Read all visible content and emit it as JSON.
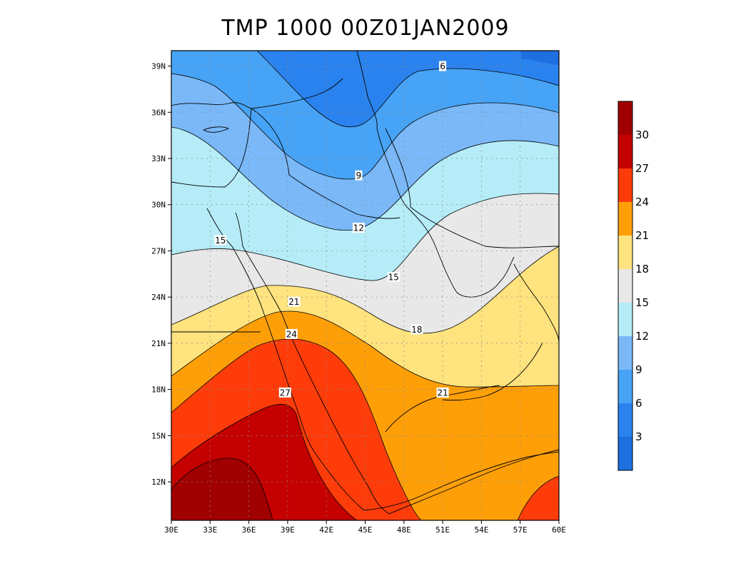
{
  "title": "TMP 1000 00Z01JAN2009",
  "chart_data": {
    "type": "contour_map",
    "variable": "TMP",
    "level": "1000",
    "time": "00Z01JAN2009",
    "lon_range": [
      30,
      60
    ],
    "lat_range": [
      9.5,
      40
    ],
    "x_ticks": [
      "30E",
      "33E",
      "36E",
      "39E",
      "42E",
      "45E",
      "48E",
      "51E",
      "54E",
      "57E",
      "60E"
    ],
    "y_ticks": [
      "12N",
      "15N",
      "18N",
      "21N",
      "24N",
      "27N",
      "30N",
      "33N",
      "36N",
      "39N"
    ],
    "colorbar": {
      "labels": [
        "3",
        "6",
        "9",
        "12",
        "15",
        "18",
        "21",
        "24",
        "27",
        "30"
      ],
      "colors": [
        "#1e6fe0",
        "#2a82ee",
        "#47a3f5",
        "#7ab8f8",
        "#b5ecf8",
        "#e8e8e8",
        "#fee37e",
        "#fe9f08",
        "#fe3c0a",
        "#c40000",
        "#a00000"
      ]
    },
    "contour_labels": [
      {
        "value": "6",
        "lon": 51,
        "lat": 39
      },
      {
        "value": "9",
        "lon": 44.5,
        "lat": 31.9
      },
      {
        "value": "12",
        "lon": 44.5,
        "lat": 28.5
      },
      {
        "value": "15",
        "lon": 33.8,
        "lat": 27.7
      },
      {
        "value": "15",
        "lon": 47.2,
        "lat": 25.3
      },
      {
        "value": "18",
        "lon": 49.0,
        "lat": 21.9
      },
      {
        "value": "21",
        "lon": 39.5,
        "lat": 23.7
      },
      {
        "value": "21",
        "lon": 51.0,
        "lat": 17.8
      },
      {
        "value": "24",
        "lon": 39.3,
        "lat": 21.6
      },
      {
        "value": "27",
        "lon": 38.8,
        "lat": 17.8
      }
    ]
  }
}
